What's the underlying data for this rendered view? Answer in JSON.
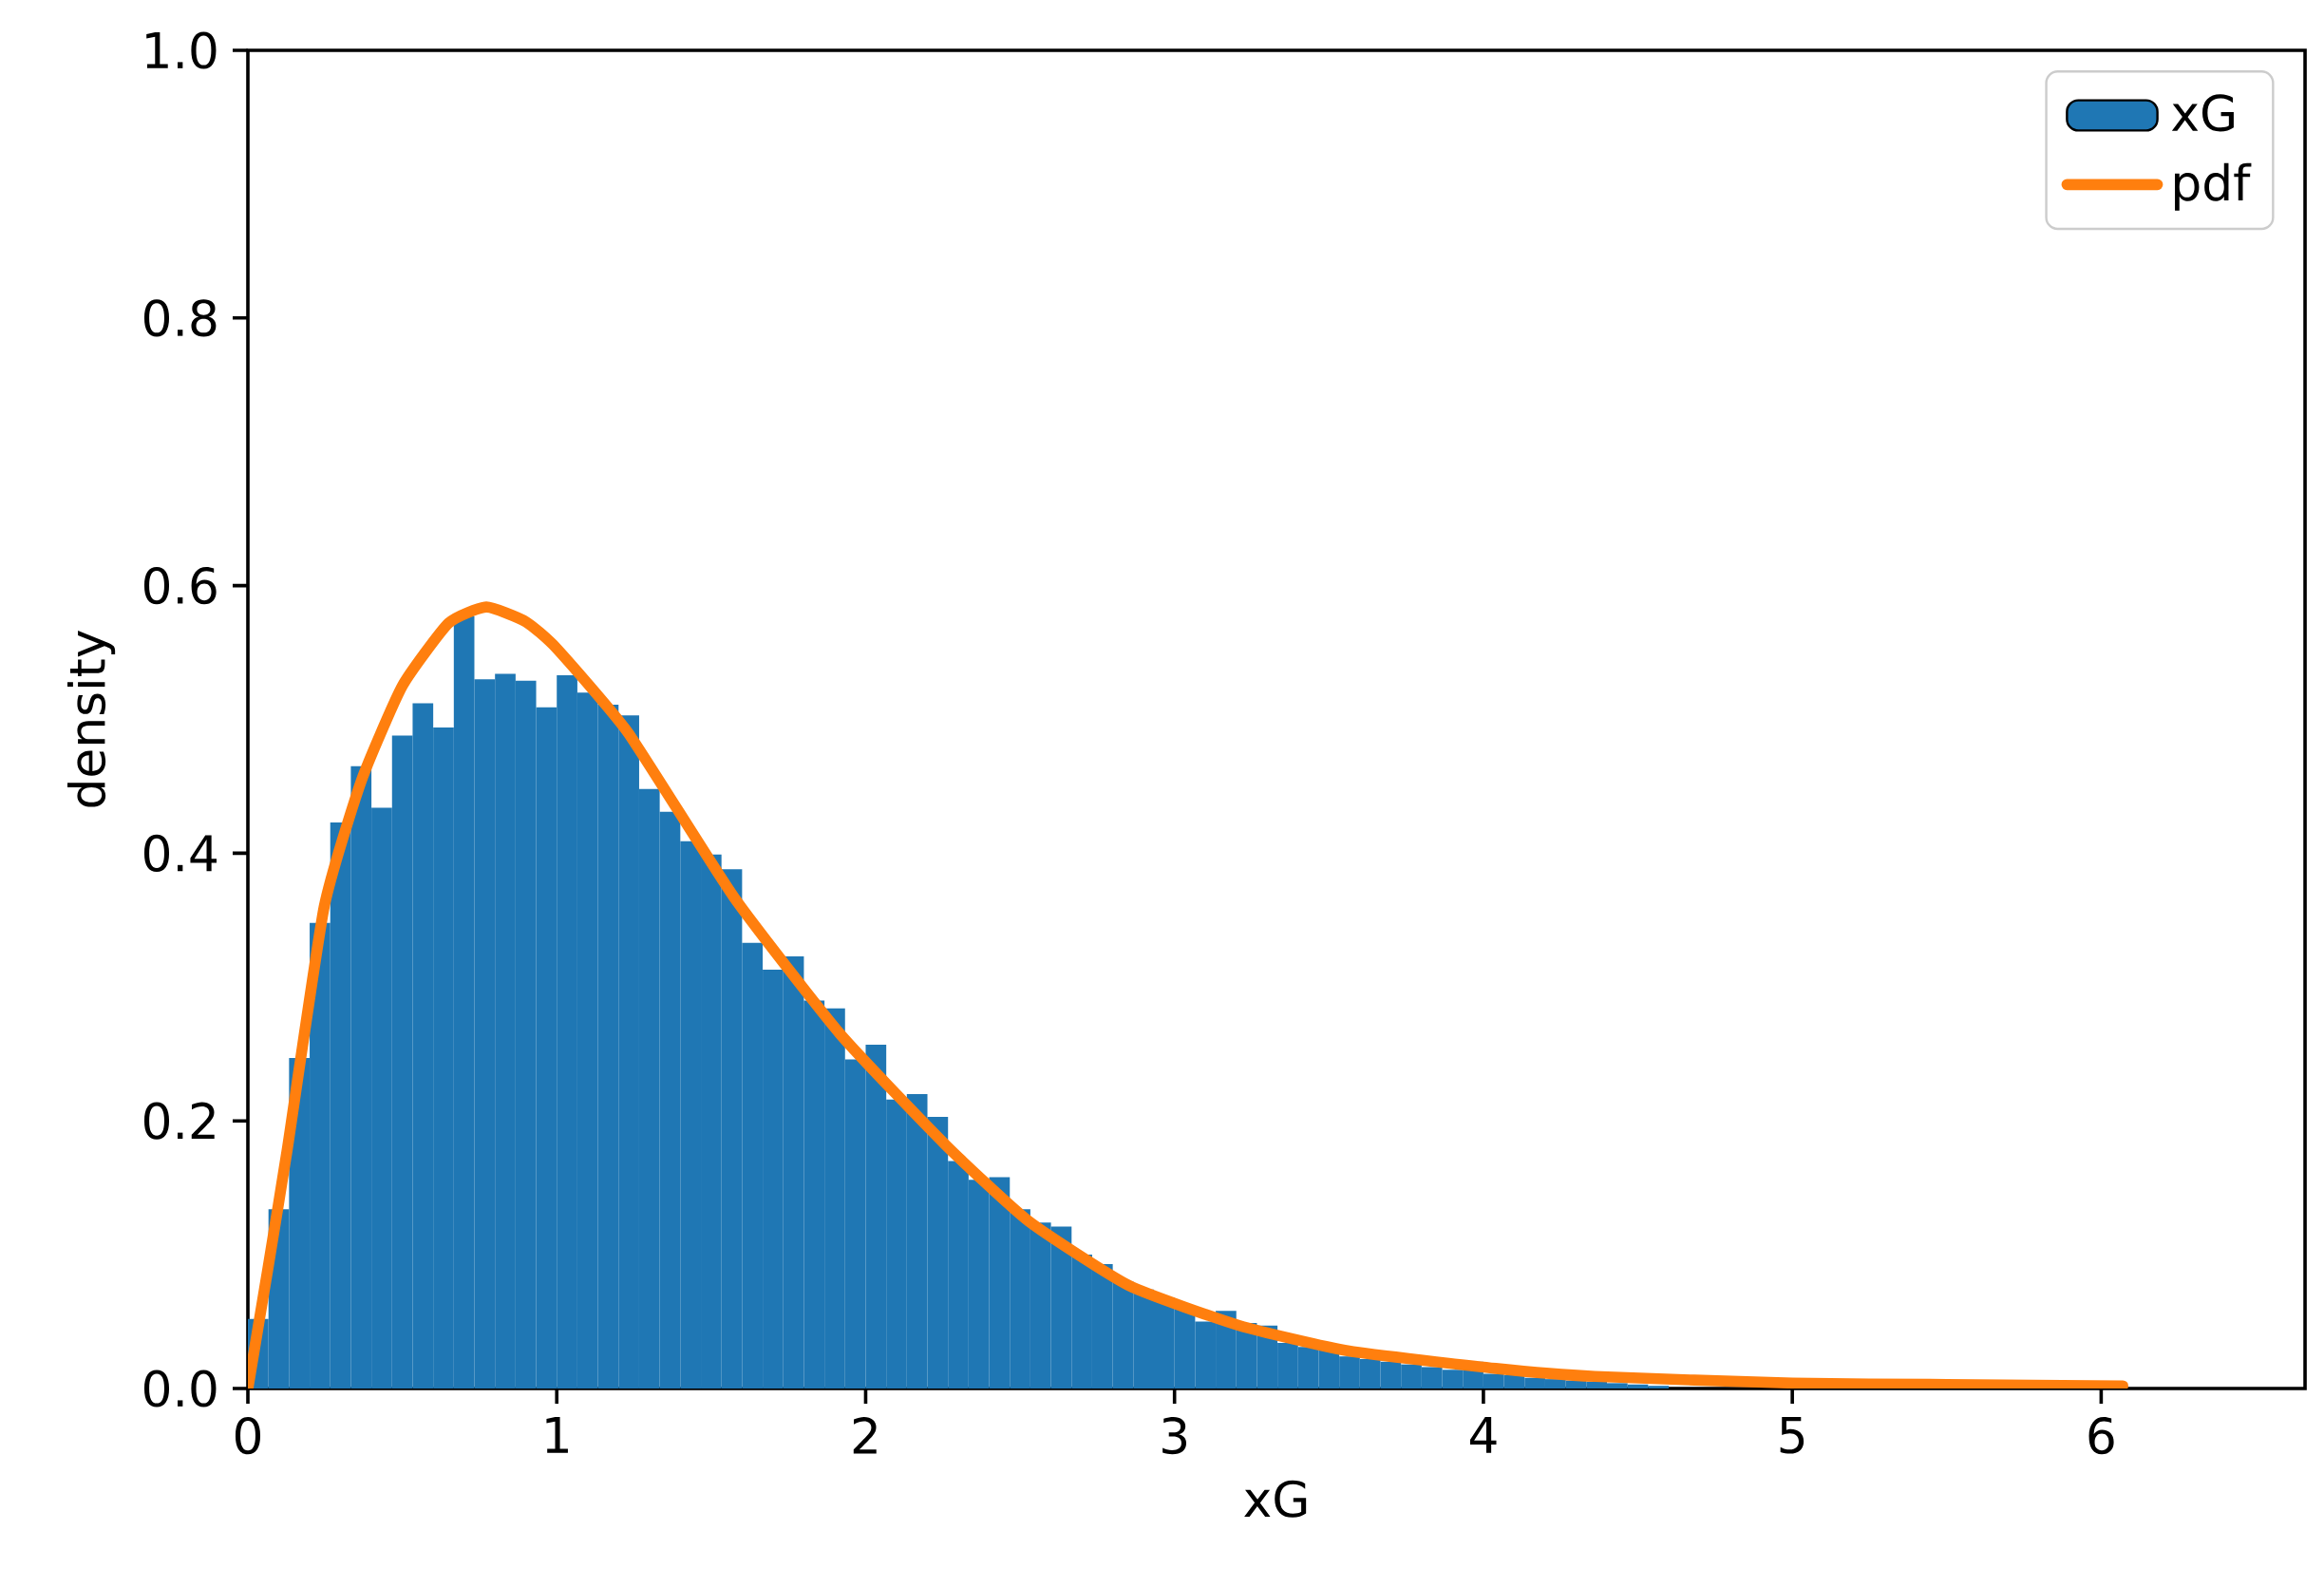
{
  "chart_data": {
    "type": "histogram",
    "xlabel": "xG",
    "ylabel": "density",
    "bins": [
      0,
      0.0667,
      0.1333,
      0.2,
      0.2667,
      0.3333,
      0.4,
      0.4667,
      0.5333,
      0.6,
      0.6667,
      0.7333,
      0.8,
      0.8667,
      0.9333,
      1,
      1.0667,
      1.1333,
      1.2,
      1.2667,
      1.3333,
      1.4,
      1.4667,
      1.5333,
      1.6,
      1.6667,
      1.7333,
      1.8,
      1.8667,
      1.9333,
      2,
      2.0667,
      2.1333,
      2.2,
      2.2667,
      2.3333,
      2.4,
      2.4667,
      2.5333,
      2.6,
      2.6667,
      2.7333,
      2.8,
      2.8667,
      2.9333,
      3,
      3.0667,
      3.1333,
      3.2,
      3.2667,
      3.3333,
      3.4,
      3.4667,
      3.5333,
      3.6,
      3.6667,
      3.7333,
      3.8,
      3.8667,
      3.9333,
      4,
      4.0667,
      4.1333,
      4.2,
      4.2667,
      4.3333,
      4.4,
      4.4667,
      4.5333,
      4.6
    ],
    "series": [
      {
        "name": "xG",
        "color": "#1f77b4",
        "values": [
          0.052,
          0.134,
          0.247,
          0.348,
          0.423,
          0.465,
          0.434,
          0.488,
          0.512,
          0.494,
          0.577,
          0.53,
          0.534,
          0.529,
          0.509,
          0.533,
          0.52,
          0.511,
          0.503,
          0.448,
          0.431,
          0.409,
          0.399,
          0.388,
          0.333,
          0.313,
          0.323,
          0.29,
          0.284,
          0.246,
          0.257,
          0.216,
          0.22,
          0.203,
          0.17,
          0.156,
          0.158,
          0.134,
          0.124,
          0.121,
          0.1,
          0.093,
          0.08,
          0.074,
          0.068,
          0.06,
          0.05,
          0.058,
          0.049,
          0.047,
          0.034,
          0.031,
          0.029,
          0.024,
          0.022,
          0.02,
          0.018,
          0.016,
          0.014,
          0.02,
          0.011,
          0.01,
          0.008,
          0.007,
          0.006,
          0.005,
          0.004,
          0.003,
          0.002
        ]
      },
      {
        "name": "pdf",
        "type": "line",
        "color": "#ff7f0e",
        "x": [
          0,
          0.065,
          0.127,
          0.247,
          0.367,
          0.5,
          0.65,
          0.772,
          0.9,
          1.0,
          1.231,
          1.574,
          1.917,
          2.259,
          2.528,
          2.852,
          3.21,
          3.565,
          4.04,
          4.36,
          5.0,
          5.5,
          6.07
        ],
        "values": [
          0,
          0.09,
          0.178,
          0.36,
          0.454,
          0.525,
          0.572,
          0.584,
          0.573,
          0.553,
          0.49,
          0.367,
          0.265,
          0.182,
          0.125,
          0.077,
          0.047,
          0.028,
          0.015,
          0.009,
          0.004,
          0.003,
          0.002
        ]
      }
    ],
    "xlim": [
      0,
      6.66
    ],
    "ylim": [
      0,
      1
    ],
    "xticks": [
      0,
      1,
      2,
      3,
      4,
      5,
      6
    ],
    "yticks": [
      {
        "value": 0,
        "label": "0.0"
      },
      0.2,
      0.4,
      0.6,
      0.8,
      {
        "value": 1,
        "label": "1.0"
      }
    ],
    "legend": "top right",
    "grid": false
  }
}
